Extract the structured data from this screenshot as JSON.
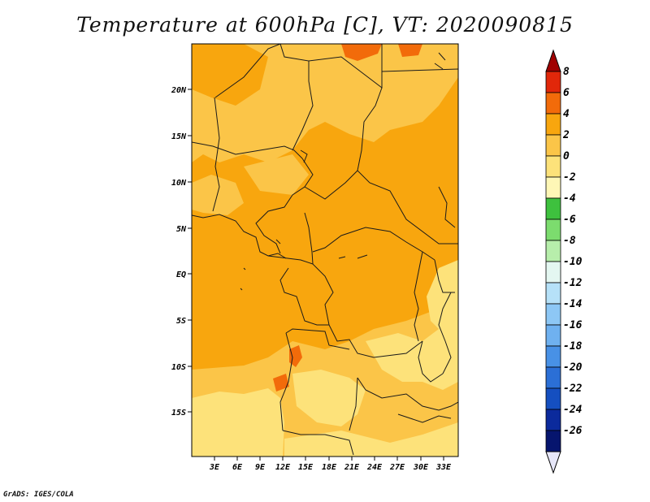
{
  "title": "Temperature at 600hPa [C], VT: 2020090815",
  "footer": "GrADS: IGES/COLA",
  "axes": {
    "lat_labels": [
      "20N",
      "15N",
      "10N",
      "5N",
      "EQ",
      "5S",
      "10S",
      "15S"
    ],
    "lon_labels": [
      "3E",
      "6E",
      "9E",
      "12E",
      "15E",
      "18E",
      "21E",
      "24E",
      "27E",
      "30E",
      "33E"
    ]
  },
  "colorbar": {
    "labels": [
      "8",
      "6",
      "4",
      "2",
      "0",
      "-2",
      "-4",
      "-6",
      "-8",
      "-10",
      "-12",
      "-14",
      "-16",
      "-18",
      "-20",
      "-22",
      "-24",
      "-26"
    ],
    "colors": [
      "#a00000",
      "#e1270a",
      "#f26b0a",
      "#f8a60e",
      "#fbc548",
      "#fde27a",
      "#fef7b6",
      "#3ec13e",
      "#7cdc6e",
      "#b7eeab",
      "#e4f7f1",
      "#b6e1f8",
      "#8dc7f5",
      "#6fb1f0",
      "#4891e6",
      "#2b6fd6",
      "#154fc0",
      "#0b2a9c",
      "#06156e",
      "#e6e6f8"
    ]
  },
  "map_colors": {
    "c2to4": "#f8a60e",
    "c0to2": "#fbc548",
    "cm2to0": "#fde27a",
    "c4to6": "#f26b0a",
    "border": "#1a1a1a"
  }
}
